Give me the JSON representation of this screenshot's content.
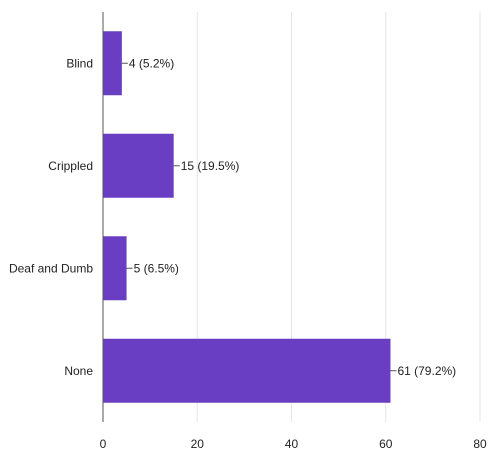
{
  "chart_data": {
    "type": "bar",
    "orientation": "horizontal",
    "categories": [
      "Blind",
      "Crippled",
      "Deaf and Dumb",
      "None"
    ],
    "values": [
      4,
      15,
      5,
      61
    ],
    "data_labels": [
      "4 (5.2%)",
      "15 (19.5%)",
      "5 (6.5%)",
      "61 (79.2%)"
    ],
    "title": "",
    "xlabel": "",
    "ylabel": "",
    "xlim": [
      0,
      80
    ],
    "xticks": [
      0,
      20,
      40,
      60,
      80
    ],
    "xtick_labels": [
      "0",
      "20",
      "40",
      "60",
      "80"
    ],
    "grid": "vertical",
    "legend": "none",
    "bar_color": "#6a3ec2",
    "grid_color": "#e6e6e6",
    "axis_color": "#555555"
  }
}
